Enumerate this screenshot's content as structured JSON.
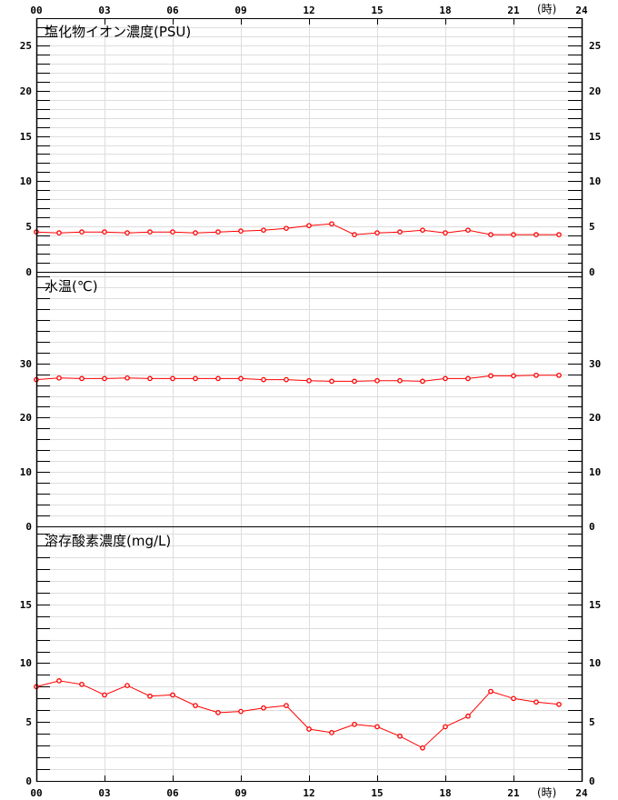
{
  "x_axis": {
    "unit_label": "(時)",
    "tick_labels": [
      "00",
      "03",
      "06",
      "09",
      "12",
      "15",
      "18",
      "21",
      "24"
    ],
    "range": [
      0,
      24
    ]
  },
  "line_color": "#ff0000",
  "grid_color": "#dddddd",
  "chart_data": [
    {
      "type": "line",
      "title": "塩化物イオン濃度(PSU)",
      "x": [
        0,
        1,
        2,
        3,
        4,
        5,
        6,
        7,
        8,
        9,
        10,
        11,
        12,
        13,
        14,
        15,
        16,
        17,
        18,
        19,
        20,
        21,
        22,
        23
      ],
      "values": [
        4.4,
        4.3,
        4.4,
        4.4,
        4.3,
        4.4,
        4.4,
        4.3,
        4.4,
        4.5,
        4.6,
        4.8,
        5.1,
        5.3,
        4.1,
        4.3,
        4.4,
        4.6,
        4.3,
        4.6,
        4.1,
        4.1,
        4.1,
        4.1
      ],
      "ylim": [
        0,
        28
      ],
      "y_ticks": [
        0,
        5,
        10,
        15,
        20,
        25
      ],
      "grid_step": 1,
      "grid": true
    },
    {
      "type": "line",
      "title": "水温(℃)",
      "x": [
        0,
        1,
        2,
        3,
        4,
        5,
        6,
        7,
        8,
        9,
        10,
        11,
        12,
        13,
        14,
        15,
        16,
        17,
        18,
        19,
        20,
        21,
        22,
        23
      ],
      "values": [
        27.0,
        27.3,
        27.2,
        27.2,
        27.3,
        27.2,
        27.2,
        27.2,
        27.2,
        27.2,
        27.0,
        27.0,
        26.8,
        26.7,
        26.7,
        26.8,
        26.8,
        26.7,
        27.2,
        27.2,
        27.7,
        27.7,
        27.8,
        27.8
      ],
      "ylim": [
        0,
        46.67
      ],
      "y_ticks": [
        0,
        10,
        20,
        30
      ],
      "grid_step": 2,
      "grid": true
    },
    {
      "type": "line",
      "title": "溶存酸素濃度(mg/L)",
      "x": [
        0,
        1,
        2,
        3,
        4,
        5,
        6,
        7,
        8,
        9,
        10,
        11,
        12,
        13,
        14,
        15,
        16,
        17,
        18,
        19,
        20,
        21,
        22,
        23
      ],
      "values": [
        8.0,
        8.5,
        8.2,
        7.3,
        8.1,
        7.2,
        7.3,
        6.4,
        5.8,
        5.9,
        6.2,
        6.4,
        4.4,
        4.1,
        4.8,
        4.6,
        3.8,
        2.8,
        4.6,
        5.5,
        7.6,
        7.0,
        6.7,
        6.5
      ],
      "ylim": [
        0,
        21.54
      ],
      "y_ticks": [
        0,
        5,
        10,
        15
      ],
      "grid_step": 1,
      "grid": true
    }
  ]
}
